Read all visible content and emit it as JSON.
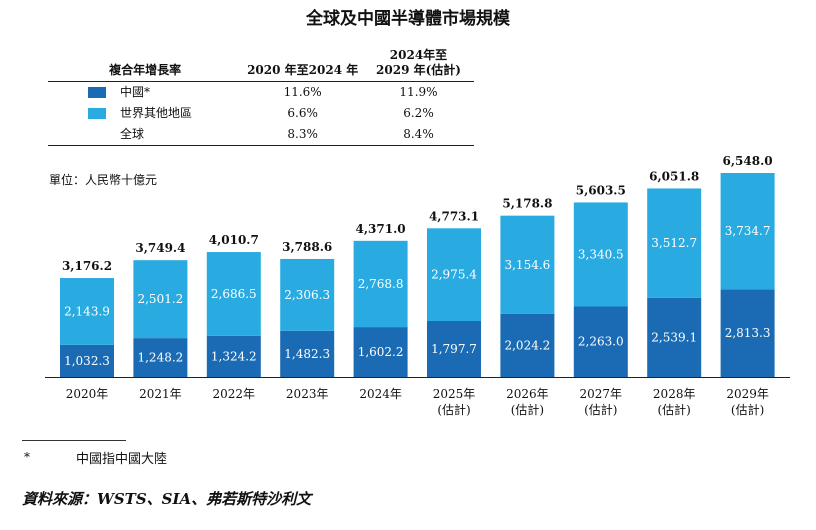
{
  "title": "全球及中國半導體市場規模",
  "cagr_table": {
    "headers": [
      "複合年增長率",
      "2020 年至2024 年",
      "2024年至\n2029 年(估計)"
    ],
    "rows": [
      {
        "label": "中國*",
        "a": "11.6%",
        "b": "11.9%",
        "color": "#1a6bb3"
      },
      {
        "label": "世界其他地區",
        "a": "6.6%",
        "b": "6.2%",
        "color": "#29abe2"
      },
      {
        "label": "全球",
        "a": "8.3%",
        "b": "8.4%",
        "color": ""
      }
    ]
  },
  "unit": "單位：人民幣十億元",
  "chart_data": {
    "type": "bar",
    "stacked": true,
    "categories": [
      "2020年",
      "2021年",
      "2022年",
      "2023年",
      "2024年",
      "2025年",
      "2026年",
      "2027年",
      "2028年",
      "2029年"
    ],
    "category_notes": [
      "",
      "",
      "",
      "",
      "",
      "(估計)",
      "(估計)",
      "(估計)",
      "(估計)",
      "(估計)"
    ],
    "series": [
      {
        "name": "中國*",
        "color": "#1a6bb3",
        "values": [
          1032.3,
          1248.2,
          1324.2,
          1482.3,
          1602.2,
          1797.7,
          2024.2,
          2263.0,
          2539.1,
          2813.3
        ],
        "labels": [
          "1,032.3",
          "1,248.2",
          "1,324.2",
          "1,482.3",
          "1,602.2",
          "1,797.7",
          "2,024.2",
          "2,263.0",
          "2,539.1",
          "2,813.3"
        ]
      },
      {
        "name": "世界其他地區",
        "color": "#29abe2",
        "values": [
          2143.9,
          2501.2,
          2686.5,
          2306.3,
          2768.8,
          2975.4,
          3154.6,
          3340.5,
          3512.7,
          3734.7
        ],
        "labels": [
          "2,143.9",
          "2,501.2",
          "2,686.5",
          "2,306.3",
          "2,768.8",
          "2,975.4",
          "3,154.6",
          "3,340.5",
          "3,512.7",
          "3,734.7"
        ]
      }
    ],
    "totals": [
      3176.2,
      3749.4,
      4010.7,
      3788.6,
      4371.0,
      4773.1,
      5178.8,
      5603.5,
      6051.8,
      6548.0
    ],
    "total_labels": [
      "3,176.2",
      "3,749.4",
      "4,010.7",
      "3,788.6",
      "4,371.0",
      "4,773.1",
      "5,178.8",
      "5,603.5",
      "6,051.8",
      "6,548.0"
    ],
    "ylim": [
      0,
      6548.0
    ]
  },
  "footnote": {
    "mark": "*",
    "text": "中國指中國大陸"
  },
  "source": "資料來源：WSTS、SIA、弗若斯特沙利文"
}
